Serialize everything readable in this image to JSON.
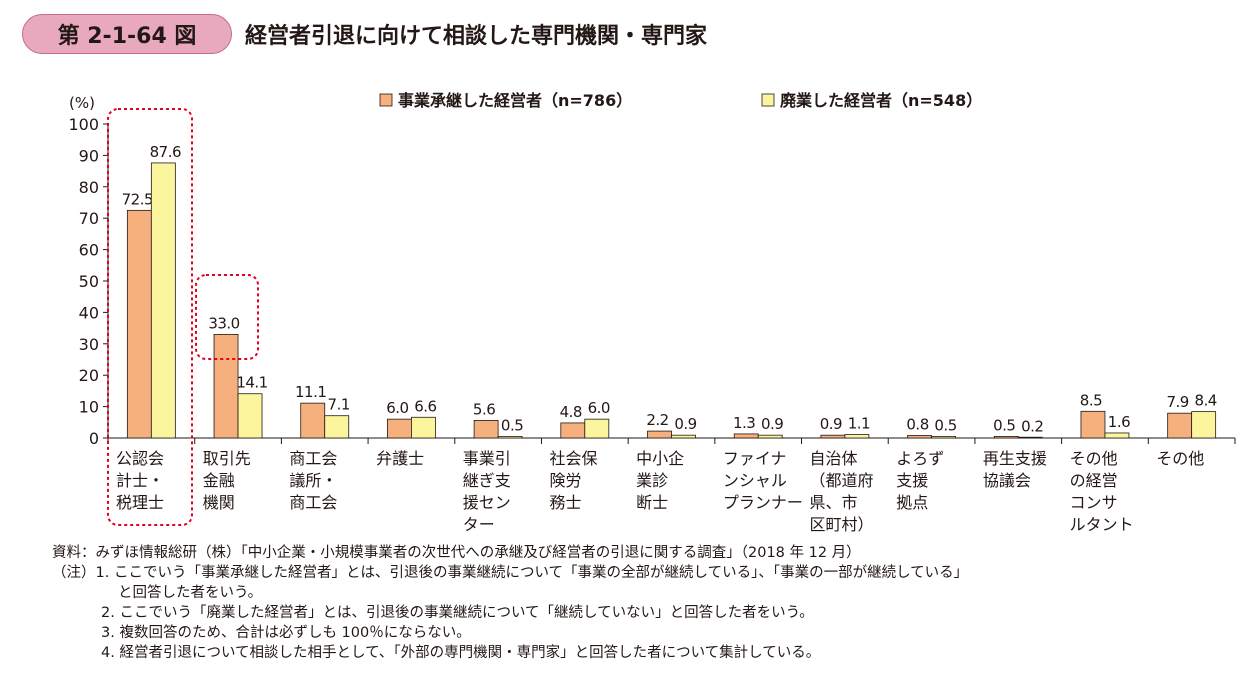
{
  "figure": {
    "number": "第 2-1-64 図",
    "title": "経営者引退に向けて相談した専門機関・専門家"
  },
  "chart_data": {
    "type": "bar",
    "ylabel": "(%)",
    "ylim": [
      0,
      100
    ],
    "yticks": [
      0,
      10,
      20,
      30,
      40,
      50,
      60,
      70,
      80,
      90,
      100
    ],
    "legend_position": "top",
    "categories": [
      [
        "公認会",
        "計士・",
        "税理士"
      ],
      [
        "取引先",
        "金融",
        "機関"
      ],
      [
        "商工会",
        "議所・",
        "商工会"
      ],
      [
        "弁護士"
      ],
      [
        "事業引",
        "継ぎ支",
        "援セン",
        "ター"
      ],
      [
        "社会保",
        "険労",
        "務士"
      ],
      [
        "中小企",
        "業診",
        "断士"
      ],
      [
        "ファイナ",
        "ンシャル",
        "プランナー"
      ],
      [
        "自治体",
        "（都道府",
        "県、市",
        "区町村）"
      ],
      [
        "よろず",
        "支援",
        "拠点"
      ],
      [
        "再生支援",
        "協議会"
      ],
      [
        "その他",
        "の経営",
        "コンサ",
        "ルタント"
      ],
      [
        "その他"
      ]
    ],
    "series": [
      {
        "name": "事業承継した経営者（n=786）",
        "color": "#f5b07e",
        "values": [
          72.5,
          33.0,
          11.1,
          6.0,
          5.6,
          4.8,
          2.2,
          1.3,
          0.9,
          0.8,
          0.5,
          8.5,
          7.9
        ],
        "labels": [
          "72.5",
          "33.0",
          "11.1",
          "6.0",
          "5.6",
          "4.8",
          "2.2",
          "1.3",
          "0.9",
          "0.8",
          "0.5",
          "8.5",
          "7.9"
        ]
      },
      {
        "name": "廃業した経営者（n=548）",
        "color": "#fbf59e",
        "values": [
          87.6,
          14.1,
          7.1,
          6.6,
          0.5,
          6.0,
          0.9,
          0.9,
          1.1,
          0.5,
          0.2,
          1.6,
          8.4
        ],
        "labels": [
          "87.6",
          "14.1",
          "7.1",
          "6.6",
          "0.5",
          "6.0",
          "0.9",
          "0.9",
          "1.1",
          "0.5",
          "0.2",
          "1.6",
          "8.4"
        ]
      }
    ],
    "highlight_color": "#e6001f"
  },
  "notes": {
    "source": "資料：みずほ情報総研（株）「中小企業・小規模事業者の次世代への承継及び経営者の引退に関する調査」（2018 年 12 月）",
    "n1": "（注）1. ここでいう「事業承継した経営者」とは、引退後の事業継続について「事業の全部が継続している」、「事業の一部が継続している」",
    "n1b": "と回答した者をいう。",
    "n2": "2. ここでいう「廃業した経営者」とは、引退後の事業継続について「継続していない」と回答した者をいう。",
    "n3": "3. 複数回答のため、合計は必ずしも 100％にならない。",
    "n4": "4. 経営者引退について相談した相手として、「外部の専門機関・専門家」と回答した者について集計している。"
  }
}
